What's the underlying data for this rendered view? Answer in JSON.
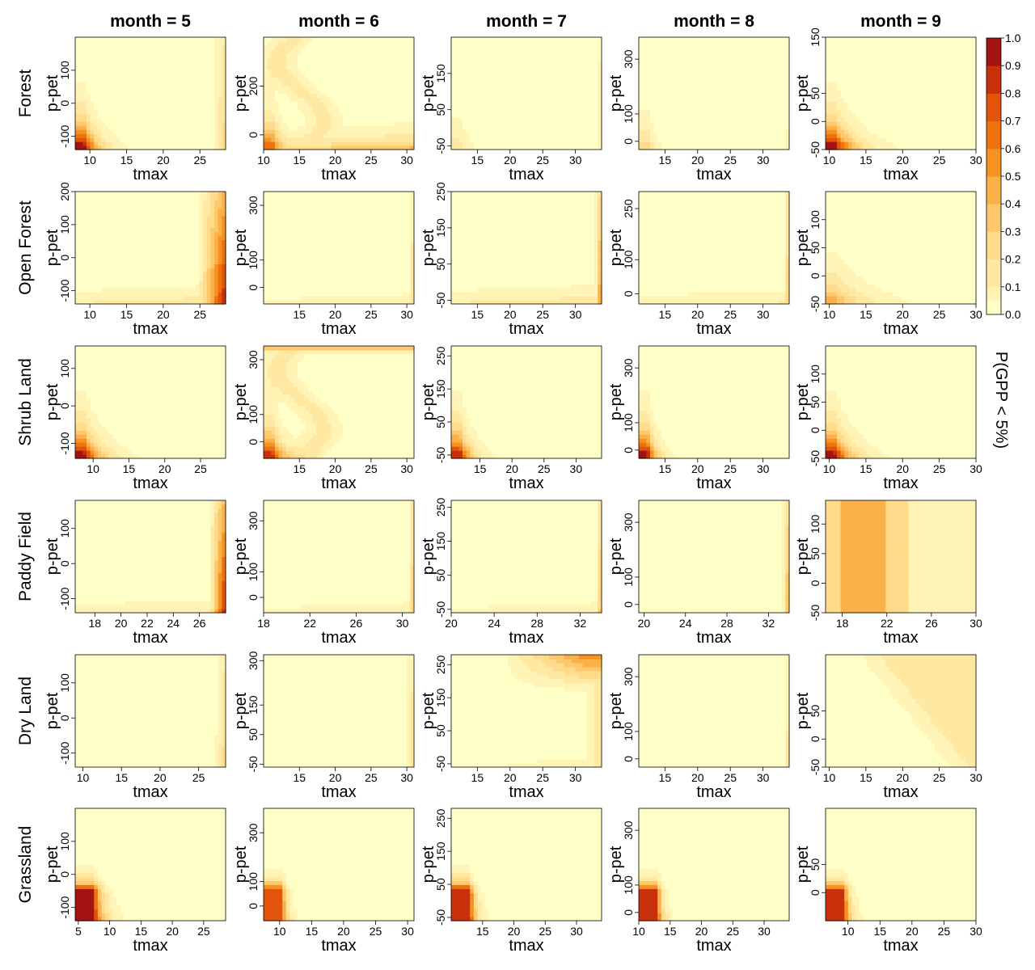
{
  "palette": [
    "#FFFFC8",
    "#FFF4B6",
    "#FFE9A2",
    "#FFDB8B",
    "#FDC96C",
    "#FBB14A",
    "#F59220",
    "#EE7310",
    "#E2540B",
    "#C9300C",
    "#A41313",
    "#6F0226"
  ],
  "chart_data": {
    "type": "heatmap",
    "facet_columns": [
      "month = 5",
      "month = 6",
      "month = 7",
      "month = 8",
      "month = 9"
    ],
    "facet_rows": [
      "Forest",
      "Open Forest",
      "Shrub Land",
      "Paddy Field",
      "Dry Land",
      "Grassland"
    ],
    "xlabel": "tmax",
    "ylabel": "p-pet",
    "colorbar": {
      "title": "P(GPP < 5%)",
      "ticks": [
        "1.0",
        "0.9",
        "0.8",
        "0.7",
        "0.6",
        "0.5",
        "0.4",
        "0.3",
        "0.2",
        "0.1",
        "0.0"
      ]
    },
    "panels": [
      {
        "row": "Forest",
        "month": 5,
        "xlim": [
          8,
          28.5
        ],
        "ylim": [
          -140,
          200
        ],
        "xticks": [
          "10",
          "15",
          "20",
          "25"
        ],
        "yticks": [
          "-100",
          "0",
          "100"
        ],
        "field": "cold",
        "cold_strength": 1.0,
        "tail": 0.25,
        "hot_strength": 0.35,
        "hot_edge": 0.9
      },
      {
        "row": "Forest",
        "month": 6,
        "xlim": [
          10,
          31
        ],
        "ylim": [
          -60,
          400
        ],
        "xticks": [
          "10",
          "15",
          "20",
          "25",
          "30"
        ],
        "yticks": [
          "0",
          "200"
        ],
        "field": "cold",
        "cold_strength": 0.7,
        "tail": 0.2,
        "wave": true,
        "dry_edge": 0.55
      },
      {
        "row": "Forest",
        "month": 7,
        "xlim": [
          11,
          34
        ],
        "ylim": [
          -60,
          250
        ],
        "xticks": [
          "15",
          "20",
          "25",
          "30"
        ],
        "yticks": [
          "-50",
          "50",
          "150"
        ],
        "field": "cold",
        "cold_strength": 0.2,
        "tail": 0.2,
        "hot_strength": 0.3,
        "hot_edge": 0.98
      },
      {
        "row": "Forest",
        "month": 8,
        "xlim": [
          11,
          34
        ],
        "ylim": [
          -30,
          380
        ],
        "xticks": [
          "15",
          "20",
          "25",
          "30"
        ],
        "yticks": [
          "0",
          "100",
          "300"
        ],
        "field": "cold",
        "cold_strength": 0.3,
        "tail": 0.15,
        "hot_strength": 0.2,
        "hot_edge": 0.98
      },
      {
        "row": "Forest",
        "month": 9,
        "xlim": [
          9.5,
          30
        ],
        "ylim": [
          -50,
          150
        ],
        "xticks": [
          "10",
          "15",
          "20",
          "25",
          "30"
        ],
        "yticks": [
          "-50",
          "0",
          "50",
          "150"
        ],
        "field": "cold",
        "cold_strength": 1.0,
        "tail": 0.35
      },
      {
        "row": "Open Forest",
        "month": 5,
        "xlim": [
          8,
          28.5
        ],
        "ylim": [
          -140,
          200
        ],
        "xticks": [
          "10",
          "15",
          "20",
          "25"
        ],
        "yticks": [
          "-100",
          "0",
          "100",
          "200"
        ],
        "field": "hot",
        "hot_strength": 1.0,
        "hot_edge": 0.8,
        "dry_edge": 0.3
      },
      {
        "row": "Open Forest",
        "month": 6,
        "xlim": [
          10,
          31
        ],
        "ylim": [
          -60,
          350
        ],
        "xticks": [
          "15",
          "20",
          "25",
          "30"
        ],
        "yticks": [
          "0",
          "100",
          "300"
        ],
        "field": "hot",
        "hot_strength": 0.4,
        "hot_edge": 0.97,
        "dry_edge": 0.15
      },
      {
        "row": "Open Forest",
        "month": 7,
        "xlim": [
          11,
          34
        ],
        "ylim": [
          -60,
          250
        ],
        "xticks": [
          "15",
          "20",
          "25",
          "30"
        ],
        "yticks": [
          "-50",
          "50",
          "150",
          "250"
        ],
        "field": "hot",
        "hot_strength": 0.7,
        "hot_edge": 0.95,
        "dry_edge": 0.3
      },
      {
        "row": "Open Forest",
        "month": 8,
        "xlim": [
          11,
          34
        ],
        "ylim": [
          -30,
          300
        ],
        "xticks": [
          "15",
          "20",
          "25",
          "30"
        ],
        "yticks": [
          "0",
          "100",
          "250"
        ],
        "field": "hot",
        "hot_strength": 0.5,
        "hot_edge": 0.96,
        "dry_edge": 0.2
      },
      {
        "row": "Open Forest",
        "month": 9,
        "xlim": [
          9.5,
          30
        ],
        "ylim": [
          -50,
          150
        ],
        "xticks": [
          "10",
          "15",
          "20",
          "25",
          "30"
        ],
        "yticks": [
          "-50",
          "0",
          "50",
          "100"
        ],
        "field": "cold",
        "cold_strength": 0.5,
        "tail": 0.55
      },
      {
        "row": "Shrub Land",
        "month": 5,
        "xlim": [
          7.5,
          28.5
        ],
        "ylim": [
          -140,
          160
        ],
        "xticks": [
          "10",
          "15",
          "20",
          "25"
        ],
        "yticks": [
          "-100",
          "0",
          "100"
        ],
        "field": "cold",
        "cold_strength": 1.0,
        "tail": 0.3
      },
      {
        "row": "Shrub Land",
        "month": 6,
        "xlim": [
          10,
          31
        ],
        "ylim": [
          -60,
          350
        ],
        "xticks": [
          "15",
          "20",
          "25",
          "30"
        ],
        "yticks": [
          "0",
          "100",
          "300"
        ],
        "field": "cold",
        "cold_strength": 0.9,
        "tail": 0.2,
        "wave": true,
        "wet_edge": 0.6
      },
      {
        "row": "Shrub Land",
        "month": 7,
        "xlim": [
          10.5,
          34
        ],
        "ylim": [
          -60,
          280
        ],
        "xticks": [
          "15",
          "20",
          "25",
          "30"
        ],
        "yticks": [
          "-50",
          "50",
          "150",
          "250"
        ],
        "field": "cold",
        "cold_strength": 0.95,
        "tail": 0.2
      },
      {
        "row": "Shrub Land",
        "month": 8,
        "xlim": [
          11,
          34
        ],
        "ylim": [
          -30,
          380
        ],
        "xticks": [
          "15",
          "20",
          "25",
          "30"
        ],
        "yticks": [
          "0",
          "100",
          "300"
        ],
        "field": "cold",
        "cold_strength": 1.0,
        "tail": 0.15
      },
      {
        "row": "Shrub Land",
        "month": 9,
        "xlim": [
          9.5,
          30
        ],
        "ylim": [
          -50,
          150
        ],
        "xticks": [
          "10",
          "15",
          "20",
          "25",
          "30"
        ],
        "yticks": [
          "-50",
          "0",
          "50",
          "100"
        ],
        "field": "cold",
        "cold_strength": 1.0,
        "tail": 0.3
      },
      {
        "row": "Paddy Field",
        "month": 5,
        "xlim": [
          16.5,
          28
        ],
        "ylim": [
          -140,
          180
        ],
        "xticks": [
          "18",
          "20",
          "22",
          "24",
          "26"
        ],
        "yticks": [
          "-100",
          "0",
          "100"
        ],
        "field": "hot",
        "hot_strength": 1.0,
        "hot_edge": 0.88,
        "dry_edge": 0.2
      },
      {
        "row": "Paddy Field",
        "month": 6,
        "xlim": [
          18,
          31
        ],
        "ylim": [
          -60,
          380
        ],
        "xticks": [
          "18",
          "22",
          "26",
          "30"
        ],
        "yticks": [
          "0",
          "100",
          "300"
        ],
        "field": "hot",
        "hot_strength": 0.5,
        "hot_edge": 0.96,
        "dry_edge": 0.15
      },
      {
        "row": "Paddy Field",
        "month": 7,
        "xlim": [
          20,
          34
        ],
        "ylim": [
          -60,
          270
        ],
        "xticks": [
          "20",
          "24",
          "28",
          "32"
        ],
        "yticks": [
          "-50",
          "50",
          "150",
          "250"
        ],
        "field": "hot",
        "hot_strength": 0.55,
        "hot_edge": 0.96,
        "dry_edge": 0.15
      },
      {
        "row": "Paddy Field",
        "month": 8,
        "xlim": [
          19.5,
          34
        ],
        "ylim": [
          -30,
          380
        ],
        "xticks": [
          "20",
          "24",
          "28",
          "32"
        ],
        "yticks": [
          "0",
          "100",
          "300"
        ],
        "field": "hot",
        "hot_strength": 0.6,
        "hot_edge": 0.95
      },
      {
        "row": "Paddy Field",
        "month": 9,
        "xlim": [
          16.5,
          30
        ],
        "ylim": [
          -50,
          140
        ],
        "xticks": [
          "18",
          "22",
          "26",
          "30"
        ],
        "yticks": [
          "-50",
          "0",
          "50",
          "100"
        ],
        "field": "band",
        "band_strength": 0.5
      },
      {
        "row": "Dry Land",
        "month": 5,
        "xlim": [
          9,
          28.5
        ],
        "ylim": [
          -140,
          180
        ],
        "xticks": [
          "10",
          "15",
          "20",
          "25"
        ],
        "yticks": [
          "-100",
          "0",
          "100"
        ],
        "field": "hot",
        "hot_strength": 0.35,
        "hot_edge": 0.92
      },
      {
        "row": "Dry Land",
        "month": 6,
        "xlim": [
          10,
          31
        ],
        "ylim": [
          -60,
          320
        ],
        "xticks": [
          "15",
          "20",
          "25",
          "30"
        ],
        "yticks": [
          "-50",
          "50",
          "150",
          "300"
        ],
        "field": "hot",
        "hot_strength": 0.3,
        "hot_edge": 0.92
      },
      {
        "row": "Dry Land",
        "month": 7,
        "xlim": [
          11,
          34
        ],
        "ylim": [
          -60,
          280
        ],
        "xticks": [
          "15",
          "20",
          "25",
          "30"
        ],
        "yticks": [
          "-50",
          "50",
          "150",
          "250"
        ],
        "field": "wettop",
        "hot_strength": 0.65,
        "dry_edge": 0.2
      },
      {
        "row": "Dry Land",
        "month": 8,
        "xlim": [
          11,
          34
        ],
        "ylim": [
          -30,
          380
        ],
        "xticks": [
          "15",
          "20",
          "25",
          "30"
        ],
        "yticks": [
          "0",
          "100",
          "300"
        ],
        "field": "hot",
        "hot_strength": 0.35,
        "hot_edge": 0.97
      },
      {
        "row": "Dry Land",
        "month": 9,
        "xlim": [
          9.5,
          30
        ],
        "ylim": [
          -50,
          150
        ],
        "xticks": [
          "10",
          "15",
          "20",
          "25",
          "30"
        ],
        "yticks": [
          "-50",
          "0",
          "50"
        ],
        "field": "diag",
        "hot_strength": 0.2
      },
      {
        "row": "Grassland",
        "month": 5,
        "xlim": [
          4.5,
          28.5
        ],
        "ylim": [
          -140,
          200
        ],
        "xticks": [
          "5",
          "10",
          "15",
          "20",
          "25"
        ],
        "yticks": [
          "-100",
          "0",
          "100"
        ],
        "field": "corner",
        "cold_strength": 1.0,
        "tail": 0.18
      },
      {
        "row": "Grassland",
        "month": 6,
        "xlim": [
          7.5,
          31
        ],
        "ylim": [
          -60,
          400
        ],
        "xticks": [
          "10",
          "15",
          "20",
          "25",
          "30"
        ],
        "yticks": [
          "0",
          "100",
          "300"
        ],
        "field": "corner",
        "cold_strength": 0.8,
        "tail": 0.1
      },
      {
        "row": "Grassland",
        "month": 7,
        "xlim": [
          10,
          34
        ],
        "ylim": [
          -60,
          280
        ],
        "xticks": [
          "15",
          "20",
          "25",
          "30"
        ],
        "yticks": [
          "-50",
          "50",
          "150",
          "250"
        ],
        "field": "corner",
        "cold_strength": 0.95,
        "tail": 0.12
      },
      {
        "row": "Grassland",
        "month": 8,
        "xlim": [
          10,
          34
        ],
        "ylim": [
          -30,
          380
        ],
        "xticks": [
          "10",
          "15",
          "20",
          "25",
          "30"
        ],
        "yticks": [
          "0",
          "100",
          "300"
        ],
        "field": "corner",
        "cold_strength": 0.9,
        "tail": 0.1
      },
      {
        "row": "Grassland",
        "month": 9,
        "xlim": [
          6.5,
          30
        ],
        "ylim": [
          -50,
          150
        ],
        "xticks": [
          "10",
          "15",
          "20",
          "25",
          "30"
        ],
        "yticks": [
          "0",
          "50"
        ],
        "field": "corner",
        "cold_strength": 0.9,
        "tail": 0.12
      }
    ]
  }
}
